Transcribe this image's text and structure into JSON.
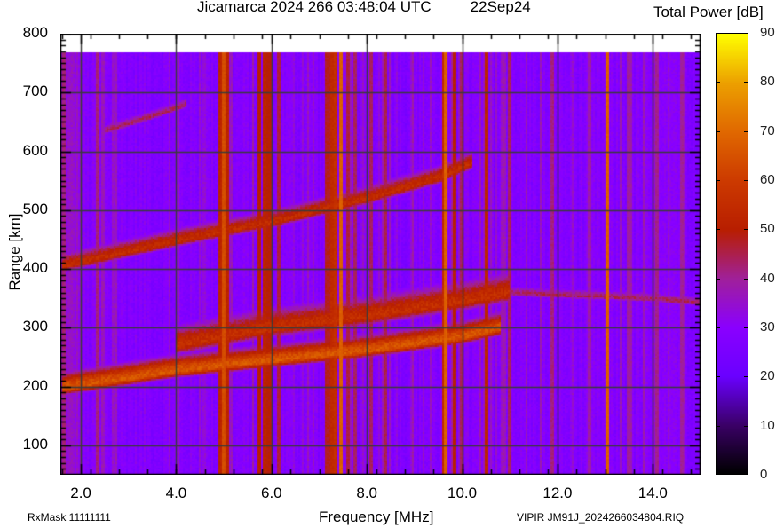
{
  "header": {
    "title": "Jicamarca 2024 266 03:48:04 UTC",
    "date": "22Sep24",
    "colorbar_title": "Total Power [dB]"
  },
  "footer": {
    "left": "RxMask 11111111",
    "right": "VIPIR  JM91J_2024266034804.RIQ"
  },
  "chart_data": {
    "type": "heatmap",
    "title": "Jicamarca 2024 266 03:48:04 UTC 22Sep24",
    "xlabel": "Frequency [MHz]",
    "ylabel": "Range [km]",
    "colorbar_label": "Total Power [dB]",
    "xlim": [
      1.57,
      15.0
    ],
    "ylim": [
      50,
      800
    ],
    "data_range_top_km": 768,
    "x_ticks": [
      "2.0",
      "4.0",
      "6.0",
      "8.0",
      "10.0",
      "12.0",
      "14.0"
    ],
    "x_tick_values": [
      2,
      4,
      6,
      8,
      10,
      12,
      14
    ],
    "y_ticks": [
      "100",
      "200",
      "300",
      "400",
      "500",
      "600",
      "700",
      "800"
    ],
    "y_tick_values": [
      100,
      200,
      300,
      400,
      500,
      600,
      700,
      800
    ],
    "colorbar_ticks": [
      "0",
      "10",
      "20",
      "30",
      "40",
      "50",
      "60",
      "70",
      "80",
      "90"
    ],
    "colorbar_range": [
      0,
      90
    ],
    "grid": true,
    "background_level_db": 28,
    "colormap": [
      {
        "v": 0,
        "c": "#000000"
      },
      {
        "v": 10,
        "c": "#3a0066"
      },
      {
        "v": 20,
        "c": "#6a00ff"
      },
      {
        "v": 30,
        "c": "#8a00ff"
      },
      {
        "v": 40,
        "c": "#a0209a"
      },
      {
        "v": 50,
        "c": "#b81e00"
      },
      {
        "v": 60,
        "c": "#cc3a00"
      },
      {
        "v": 70,
        "c": "#e06800"
      },
      {
        "v": 80,
        "c": "#eca000"
      },
      {
        "v": 90,
        "c": "#ffff00"
      }
    ],
    "traces": [
      {
        "name": "F-layer 1-hop echo (O/X)",
        "points": [
          [
            1.6,
            198
          ],
          [
            3.0,
            215
          ],
          [
            4.0,
            228
          ],
          [
            6.0,
            245
          ],
          [
            8.0,
            262
          ],
          [
            10.0,
            285
          ],
          [
            10.8,
            300
          ]
        ],
        "thickness_km": 40,
        "peak_db": 66
      },
      {
        "name": "F-layer spread (upper)",
        "points": [
          [
            4.0,
            270
          ],
          [
            6.0,
            300
          ],
          [
            8.0,
            320
          ],
          [
            10.0,
            345
          ],
          [
            11.0,
            360
          ]
        ],
        "thickness_km": 55,
        "peak_db": 56
      },
      {
        "name": "Spread-F tail",
        "points": [
          [
            11.0,
            360
          ],
          [
            12.5,
            355
          ],
          [
            14.0,
            350
          ],
          [
            15.0,
            343
          ]
        ],
        "thickness_km": 20,
        "peak_db": 44
      },
      {
        "name": "F-layer 2-hop echo",
        "points": [
          [
            1.6,
            405
          ],
          [
            3.0,
            430
          ],
          [
            4.0,
            448
          ],
          [
            6.0,
            480
          ],
          [
            8.0,
            520
          ],
          [
            9.5,
            555
          ],
          [
            10.2,
            580
          ]
        ],
        "thickness_km": 35,
        "peak_db": 55
      },
      {
        "name": "Faint 3-hop echo",
        "points": [
          [
            2.5,
            635
          ],
          [
            3.5,
            660
          ],
          [
            4.2,
            680
          ]
        ],
        "thickness_km": 20,
        "peak_db": 44
      }
    ],
    "interference_lines_mhz": [
      {
        "f": 1.65,
        "w": 0.05,
        "db": 42
      },
      {
        "f": 2.35,
        "w": 0.03,
        "db": 42
      },
      {
        "f": 4.95,
        "w": 0.05,
        "db": 52
      },
      {
        "f": 5.0,
        "w": 0.04,
        "db": 64
      },
      {
        "f": 5.07,
        "w": 0.05,
        "db": 52
      },
      {
        "f": 5.75,
        "w": 0.04,
        "db": 50
      },
      {
        "f": 5.85,
        "w": 0.04,
        "db": 52
      },
      {
        "f": 5.95,
        "w": 0.05,
        "db": 50
      },
      {
        "f": 6.15,
        "w": 0.03,
        "db": 46
      },
      {
        "f": 7.2,
        "w": 0.08,
        "db": 48
      },
      {
        "f": 7.3,
        "w": 0.05,
        "db": 54
      },
      {
        "f": 7.36,
        "w": 0.04,
        "db": 56
      },
      {
        "f": 7.45,
        "w": 0.03,
        "db": 68
      },
      {
        "f": 7.6,
        "w": 0.03,
        "db": 46
      },
      {
        "f": 7.75,
        "w": 0.03,
        "db": 44
      },
      {
        "f": 8.1,
        "w": 0.03,
        "db": 44
      },
      {
        "f": 8.4,
        "w": 0.04,
        "db": 45
      },
      {
        "f": 9.6,
        "w": 0.03,
        "db": 54
      },
      {
        "f": 9.65,
        "w": 0.03,
        "db": 68
      },
      {
        "f": 9.85,
        "w": 0.03,
        "db": 50
      },
      {
        "f": 10.0,
        "w": 0.03,
        "db": 44
      },
      {
        "f": 10.5,
        "w": 0.04,
        "db": 52
      },
      {
        "f": 11.0,
        "w": 0.03,
        "db": 44
      },
      {
        "f": 11.9,
        "w": 0.03,
        "db": 42
      },
      {
        "f": 13.05,
        "w": 0.04,
        "db": 68
      },
      {
        "f": 13.5,
        "w": 0.03,
        "db": 40
      },
      {
        "f": 14.1,
        "w": 0.04,
        "db": 41
      },
      {
        "f": 14.6,
        "w": 0.04,
        "db": 40
      }
    ]
  }
}
